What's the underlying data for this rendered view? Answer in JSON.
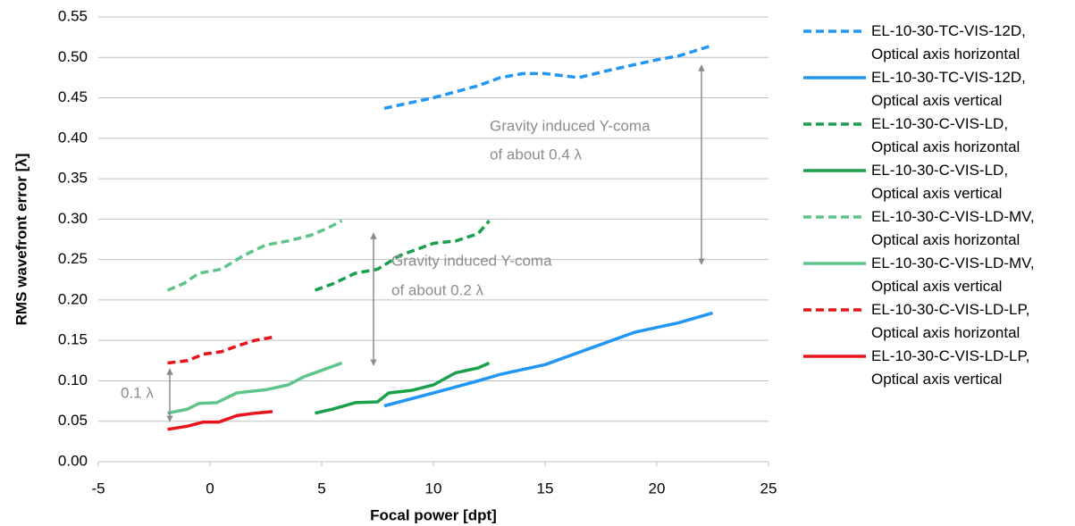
{
  "chart_data": {
    "type": "line",
    "xlabel": "Focal power [dpt]",
    "ylabel": "RMS wavefront error [λ]",
    "xlim": [
      -5,
      25
    ],
    "xticks": [
      -5,
      0,
      5,
      10,
      15,
      20,
      25
    ],
    "ylim": [
      0,
      0.55
    ],
    "yticks": [
      {
        "value": 0,
        "label": "0.00"
      },
      {
        "value": 0.05,
        "label": "0.05"
      },
      {
        "value": 0.1,
        "label": "0.10"
      },
      {
        "value": 0.15,
        "label": "0.15"
      },
      {
        "value": 0.2,
        "label": "0.20"
      },
      {
        "value": 0.25,
        "label": "0.25"
      },
      {
        "value": 0.3,
        "label": "0.30"
      },
      {
        "value": 0.35,
        "label": "0.35"
      },
      {
        "value": 0.4,
        "label": "0.40"
      },
      {
        "value": 0.45,
        "label": "0.45"
      },
      {
        "value": 0.5,
        "label": "0.50"
      },
      {
        "value": 0.55,
        "label": "0.55"
      }
    ],
    "grid": true,
    "legend": "right",
    "annotations": [
      "Gravity induced Y-coma",
      "of about 0.4 λ",
      "Gravity induced Y-coma",
      "of about 0.2 λ",
      "0.1 λ"
    ],
    "series": [
      {
        "name": "EL-10-30-TC-VIS-12D,\nOptical axis horizontal",
        "color": "#2196f3",
        "dashed": true,
        "x": [
          7.8,
          10,
          12,
          13,
          14,
          15,
          16.5,
          18,
          20,
          21,
          22.5
        ],
        "values": [
          0.437,
          0.45,
          0.465,
          0.475,
          0.48,
          0.48,
          0.475,
          0.485,
          0.497,
          0.502,
          0.515
        ]
      },
      {
        "name": "EL-10-30-TC-VIS-12D,\nOptical axis vertical",
        "color": "#2196f3",
        "dashed": false,
        "x": [
          7.8,
          10,
          12,
          13,
          15,
          17,
          19,
          21,
          22.5
        ],
        "values": [
          0.069,
          0.085,
          0.1,
          0.108,
          0.12,
          0.14,
          0.16,
          0.172,
          0.184
        ]
      },
      {
        "name": "EL-10-30-C-VIS-LD,\nOptical axis horizontal",
        "color": "#1aa04a",
        "dashed": true,
        "x": [
          4.7,
          5.5,
          6.5,
          7.5,
          8.5,
          10,
          11,
          12,
          12.5
        ],
        "values": [
          0.212,
          0.22,
          0.233,
          0.238,
          0.255,
          0.27,
          0.273,
          0.282,
          0.298
        ]
      },
      {
        "name": "EL-10-30-C-VIS-LD,\nOptical axis vertical",
        "color": "#1aa04a",
        "dashed": false,
        "x": [
          4.7,
          5.5,
          6.5,
          7.5,
          8,
          9,
          10,
          11,
          12,
          12.5
        ],
        "values": [
          0.06,
          0.065,
          0.073,
          0.074,
          0.085,
          0.088,
          0.095,
          0.11,
          0.116,
          0.122
        ]
      },
      {
        "name": "EL-10-30-C-VIS-LD-MV,\nOptical axis horizontal",
        "color": "#5fc48a",
        "dashed": true,
        "x": [
          -1.9,
          -1.2,
          -0.5,
          0.5,
          1.5,
          2.5,
          3.5,
          4.5,
          5.2,
          5.9
        ],
        "values": [
          0.212,
          0.22,
          0.233,
          0.238,
          0.255,
          0.268,
          0.273,
          0.28,
          0.288,
          0.298
        ]
      },
      {
        "name": "EL-10-30-C-VIS-LD-MV,\nOptical axis vertical",
        "color": "#5fc48a",
        "dashed": false,
        "x": [
          -1.9,
          -1,
          -0.5,
          0.3,
          1.2,
          2.5,
          3.5,
          4.2,
          5,
          5.9
        ],
        "values": [
          0.06,
          0.065,
          0.072,
          0.073,
          0.085,
          0.089,
          0.095,
          0.105,
          0.113,
          0.122
        ]
      },
      {
        "name": "EL-10-30-C-VIS-LD-LP,\nOptical axis horizontal",
        "color": "#e8141b",
        "dashed": true,
        "x": [
          -1.9,
          -1,
          -0.3,
          0.5,
          1.2,
          2,
          2.8
        ],
        "values": [
          0.122,
          0.125,
          0.133,
          0.136,
          0.143,
          0.15,
          0.154
        ]
      },
      {
        "name": "EL-10-30-C-VIS-LD-LP,\nOptical axis vertical",
        "color": "#e8141b",
        "dashed": false,
        "x": [
          -1.9,
          -1,
          -0.3,
          0.4,
          1.2,
          2,
          2.8
        ],
        "values": [
          0.04,
          0.044,
          0.049,
          0.049,
          0.057,
          0.06,
          0.062
        ]
      }
    ]
  }
}
